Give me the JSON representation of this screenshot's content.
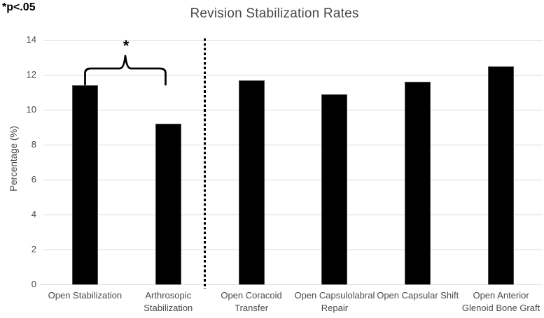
{
  "chart_data": {
    "type": "bar",
    "title": "Revision Stabilization Rates",
    "xlabel": "",
    "ylabel": "Percentage (%)",
    "ylim": [
      0,
      14
    ],
    "yticks": [
      0,
      2,
      4,
      6,
      8,
      10,
      12,
      14
    ],
    "grid": "horizontal",
    "legend": false,
    "bar_color": "#000000",
    "gridline_color": "#d9d9d9",
    "categories": [
      "Open Stabilization",
      "Arthrosopic Stabilization",
      "Open Coracoid Transfer",
      "Open Capsulolabral Repair",
      "Open Capsular Shift",
      "Open Anterior Glenoid Bone Graft"
    ],
    "category_label_lines": [
      [
        "Open Stabilization"
      ],
      [
        "Arthrosopic",
        "Stabilization"
      ],
      [
        "Open Coracoid",
        "Transfer"
      ],
      [
        "Open Capsulolabral",
        "Repair"
      ],
      [
        "Open Capsular Shift"
      ],
      [
        "Open Anterior",
        "Glenoid Bone Graft"
      ]
    ],
    "values": [
      11.4,
      9.2,
      11.7,
      10.9,
      11.6,
      12.5
    ],
    "separator": {
      "style": "dotted-vertical-line",
      "after_category": "Arthrosopic Stabilization"
    },
    "significance": {
      "symbol": "*",
      "note": "*p<.05",
      "between": [
        "Open Stabilization",
        "Arthrosopic Stabilization"
      ]
    }
  }
}
